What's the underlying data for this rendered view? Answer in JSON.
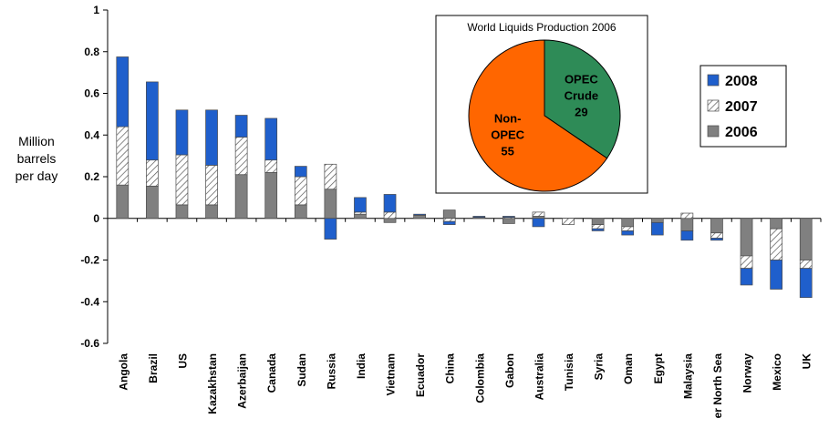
{
  "chart_data": {
    "type": "bar",
    "stacked": true,
    "ylabel": "Million barrels per day",
    "ylim": [
      -0.6,
      1
    ],
    "yticks": [
      "1",
      "0.8",
      "0.6",
      "0.4",
      "0.2",
      "0",
      "-0.2",
      "-0.4",
      "-0.6"
    ],
    "grid": false,
    "legend_position": "right",
    "categories": [
      "Angola",
      "Brazil",
      "US",
      "Kazakhstan",
      "Azerbaijan",
      "Canada",
      "Sudan",
      "Russia",
      "India",
      "Vietnam",
      "Ecuador",
      "China",
      "Colombia",
      "Gabon",
      "Australia",
      "Tunisia",
      "Syria",
      "Oman",
      "Egypt",
      "Malaysia",
      "Other North Sea",
      "Norway",
      "Mexico",
      "UK"
    ],
    "category_labels": [
      "Angola",
      "Brazil",
      "US",
      "Kazakhstan",
      "Azerbaijan",
      "Canada",
      "Sudan",
      "Russia",
      "India",
      "Vietnam",
      "Ecuador",
      "China",
      "Colombia",
      "Gabon",
      "Australia",
      "Tunisia",
      "Syria",
      "Oman",
      "Egypt",
      "Malaysia",
      "er North Sea",
      "Norway",
      "Mexico",
      "UK"
    ],
    "series": [
      {
        "name": "2006",
        "color": "#808080",
        "pattern": "solid",
        "values": [
          0.16,
          0.155,
          0.065,
          0.065,
          0.21,
          0.22,
          0.065,
          0.14,
          0.02,
          -0.02,
          0.015,
          0.04,
          0.005,
          -0.025,
          0.01,
          0,
          -0.03,
          -0.04,
          -0.02,
          -0.06,
          -0.07,
          -0.18,
          -0.05,
          -0.2
        ]
      },
      {
        "name": "2007",
        "color": "#ffffff",
        "pattern": "hatched",
        "values": [
          0.28,
          0.125,
          0.24,
          0.19,
          0.18,
          0.06,
          0.135,
          0.12,
          0.01,
          0.03,
          0,
          -0.015,
          0,
          0.005,
          0.02,
          -0.03,
          -0.02,
          -0.02,
          0,
          0.025,
          -0.025,
          -0.06,
          -0.15,
          -0.04
        ]
      },
      {
        "name": "2008",
        "color": "#1f5fcc",
        "pattern": "solid",
        "values": [
          0.335,
          0.375,
          0.215,
          0.265,
          0.105,
          0.2,
          0.05,
          -0.1,
          0.07,
          0.085,
          0.005,
          -0.015,
          0.005,
          0.005,
          -0.04,
          0,
          -0.01,
          -0.02,
          -0.06,
          -0.045,
          -0.01,
          -0.08,
          -0.14,
          -0.14
        ]
      }
    ],
    "inset": {
      "type": "pie",
      "title": "World Liquids Production 2006",
      "slices": [
        {
          "name": "OPEC Crude",
          "label_lines": [
            "OPEC",
            "Crude",
            "29"
          ],
          "value": 29,
          "color": "#2e8b57"
        },
        {
          "name": "Non-OPEC",
          "label_lines": [
            "Non-",
            "OPEC",
            "55"
          ],
          "value": 55,
          "color": "#ff6600"
        }
      ]
    }
  }
}
